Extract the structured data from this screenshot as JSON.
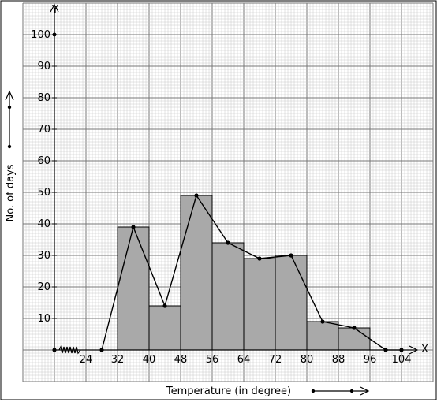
{
  "chart_data": {
    "type": "bar",
    "xlabel": "Temperature (in degree)",
    "ylabel": "No. of days",
    "x_axis_letter": "X",
    "y_axis_letter": "Y",
    "xlim": [
      16,
      116
    ],
    "ylim": [
      -10,
      110
    ],
    "x_ticks": [
      "24",
      "32",
      "40",
      "48",
      "56",
      "64",
      "72",
      "80",
      "88",
      "96",
      "104"
    ],
    "x_tick_values": [
      24,
      32,
      40,
      48,
      56,
      64,
      72,
      80,
      88,
      96,
      104
    ],
    "y_ticks": [
      "10",
      "20",
      "30",
      "40",
      "50",
      "60",
      "70",
      "80",
      "90",
      "100"
    ],
    "y_tick_values": [
      10,
      20,
      30,
      40,
      50,
      60,
      70,
      80,
      90,
      100
    ],
    "bins": [
      {
        "from": 32,
        "to": 40,
        "value": 39
      },
      {
        "from": 40,
        "to": 48,
        "value": 14
      },
      {
        "from": 48,
        "to": 56,
        "value": 49
      },
      {
        "from": 56,
        "to": 64,
        "value": 34
      },
      {
        "from": 64,
        "to": 72,
        "value": 29
      },
      {
        "from": 72,
        "to": 80,
        "value": 30
      },
      {
        "from": 80,
        "to": 88,
        "value": 9
      },
      {
        "from": 88,
        "to": 96,
        "value": 7
      }
    ],
    "frequency_polygon": {
      "x": [
        28,
        36,
        44,
        52,
        60,
        68,
        76,
        84,
        92,
        100
      ],
      "y": [
        0,
        39,
        14,
        49,
        34,
        29,
        30,
        9,
        7,
        0
      ]
    },
    "extra_points": {
      "x": [
        16,
        104
      ],
      "y": [
        0,
        0
      ]
    },
    "colors": {
      "bar": "#a9a9a9",
      "grid_minor": "#c8c8c8",
      "grid_major": "#777777",
      "line": "#000000"
    },
    "grid": true
  }
}
